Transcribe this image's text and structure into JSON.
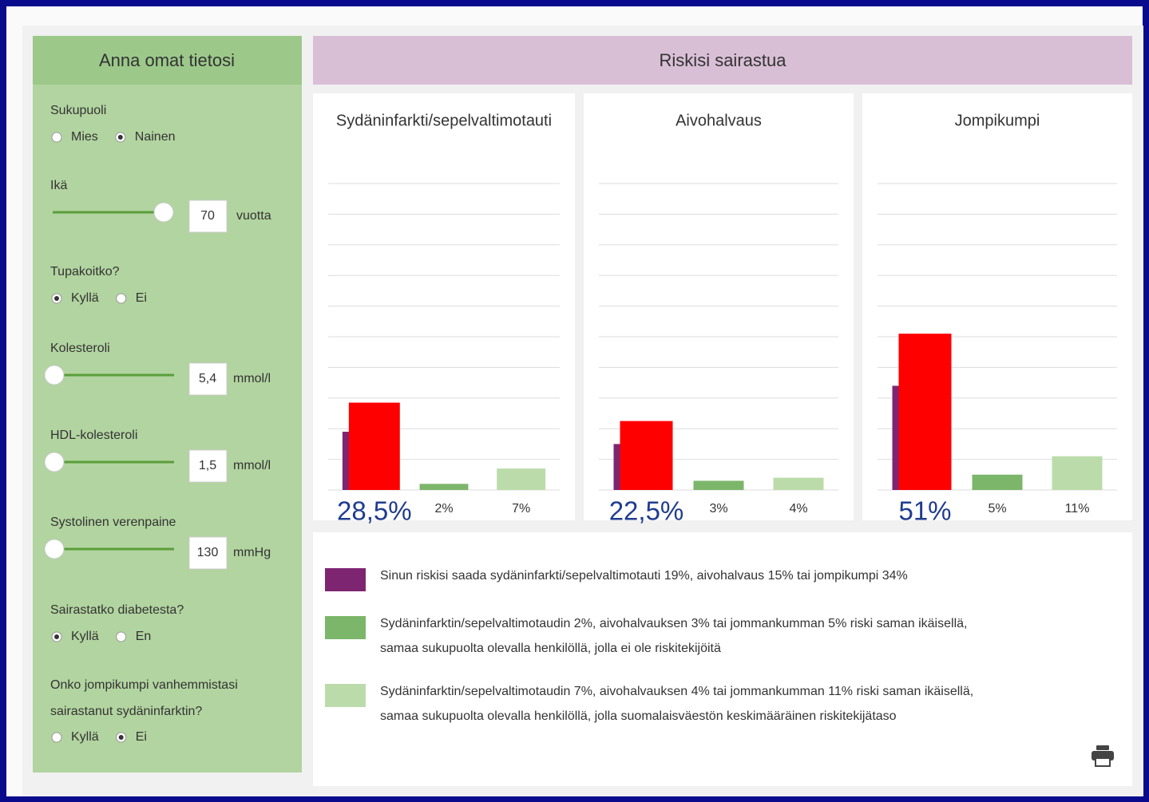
{
  "form": {
    "title": "Anna omat tietosi",
    "fields": [
      {
        "label": [
          "Sukupuoli"
        ],
        "options": [
          "Mies",
          "Nainen"
        ],
        "selected": 1
      },
      {
        "label": [
          "Ikä"
        ],
        "value": "70",
        "unit": "vuotta"
      },
      {
        "label": [
          "Tupakoitko?"
        ],
        "options": [
          "Kyllä",
          "Ei"
        ],
        "selected": 0
      },
      {
        "label": [
          "Kolesteroli"
        ],
        "value": "5,4",
        "unit": "mmol/l"
      },
      {
        "label": [
          "HDL-kolesteroli"
        ],
        "value": "1,5",
        "unit": "mmol/l"
      },
      {
        "label": [
          "Systolinen verenpaine"
        ],
        "value": "130",
        "unit": "mmHg"
      },
      {
        "label": [
          "Sairastatko diabetesta?"
        ],
        "options": [
          "Kyllä",
          "En"
        ],
        "selected": 0
      },
      {
        "label": [
          "Onko jompikumpi vanhemmistasi",
          "sairastanut sydäninfarktin?"
        ],
        "options": [
          "Kyllä",
          "Ei"
        ],
        "selected": 1
      }
    ]
  },
  "results": {
    "title": "Riskisi sairastua"
  },
  "chart_data": [
    {
      "type": "bar",
      "title": "Sydäninfarkti/sepelvaltimotauti",
      "ylim": [
        0,
        100
      ],
      "yticks": [
        0,
        10,
        20,
        30,
        40,
        50,
        60,
        70,
        80,
        90,
        100
      ],
      "grid": true,
      "values": [
        28.5,
        2,
        7
      ],
      "value_labels": [
        "28,5%",
        "2%",
        "7%"
      ],
      "colors": [
        "#ff0000",
        "#7cb66a",
        "#bbdcaa"
      ],
      "own_risk": 19,
      "own_risk_color": "#7e2572"
    },
    {
      "type": "bar",
      "title": "Aivohalvaus",
      "ylim": [
        0,
        100
      ],
      "yticks": [
        0,
        10,
        20,
        30,
        40,
        50,
        60,
        70,
        80,
        90,
        100
      ],
      "grid": true,
      "values": [
        22.5,
        3,
        4
      ],
      "value_labels": [
        "22,5%",
        "3%",
        "4%"
      ],
      "colors": [
        "#ff0000",
        "#7cb66a",
        "#bbdcaa"
      ],
      "own_risk": 15,
      "own_risk_color": "#7e2572"
    },
    {
      "type": "bar",
      "title": "Jompikumpi",
      "ylim": [
        0,
        100
      ],
      "yticks": [
        0,
        10,
        20,
        30,
        40,
        50,
        60,
        70,
        80,
        90,
        100
      ],
      "grid": true,
      "values": [
        51,
        5,
        11
      ],
      "value_labels": [
        "51%",
        "5%",
        "11%"
      ],
      "colors": [
        "#ff0000",
        "#7cb66a",
        "#bbdcaa"
      ],
      "own_risk": 34,
      "own_risk_color": "#7e2572"
    }
  ],
  "legend": [
    {
      "color": "#7e2572",
      "lines": [
        "Sinun riskisi saada sydäninfarkti/sepelvaltimotauti 19%, aivohalvaus 15% tai jompikumpi 34%"
      ]
    },
    {
      "color": "#7cb66a",
      "lines": [
        "Sydäninfarktin/sepelvaltimotaudin 2%, aivohalvauksen 3% tai jommankumman 5% riski saman ikäisellä,",
        "samaa sukupuolta olevalla henkilöllä, jolla ei ole riskitekijöitä"
      ]
    },
    {
      "color": "#bbdcaa",
      "lines": [
        "Sydäninfarktin/sepelvaltimotaudin 7%, aivohalvauksen 4% tai jommankumman 11% riski saman ikäisellä,",
        "samaa sukupuolta olevalla henkilöllä, jolla suomalaisväestön keskimääräinen riskitekijätaso"
      ]
    }
  ]
}
